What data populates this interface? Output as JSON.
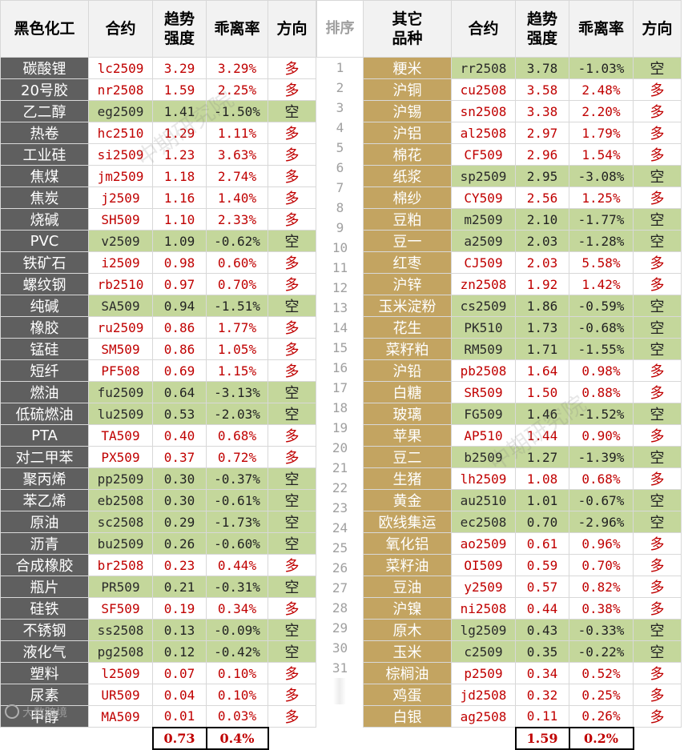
{
  "headers": {
    "left_group": "黑色化工",
    "contract": "合约",
    "strength": "趋势\n强度",
    "deviation": "乖离率",
    "direction": "方向",
    "rank": "排序",
    "right_group": "其它\n品种"
  },
  "rows": [
    {
      "rank": "1",
      "left": {
        "name": "碳酸锂",
        "code": "lc2509",
        "strength": "3.29",
        "dev": "3.29%",
        "dir": "多"
      },
      "right": {
        "name": "粳米",
        "code": "rr2508",
        "strength": "3.78",
        "dev": "-1.03%",
        "dir": "空"
      }
    },
    {
      "rank": "2",
      "left": {
        "name": "20号胶",
        "code": "nr2508",
        "strength": "1.59",
        "dev": "2.25%",
        "dir": "多"
      },
      "right": {
        "name": "沪铜",
        "code": "cu2508",
        "strength": "3.58",
        "dev": "2.48%",
        "dir": "多"
      }
    },
    {
      "rank": "3",
      "left": {
        "name": "乙二醇",
        "code": "eg2509",
        "strength": "1.41",
        "dev": "-1.50%",
        "dir": "空"
      },
      "right": {
        "name": "沪锡",
        "code": "sn2508",
        "strength": "3.38",
        "dev": "2.20%",
        "dir": "多"
      }
    },
    {
      "rank": "4",
      "left": {
        "name": "热卷",
        "code": "hc2510",
        "strength": "1.29",
        "dev": "1.11%",
        "dir": "多"
      },
      "right": {
        "name": "沪铝",
        "code": "al2508",
        "strength": "2.97",
        "dev": "1.79%",
        "dir": "多"
      }
    },
    {
      "rank": "5",
      "left": {
        "name": "工业硅",
        "code": "si2509",
        "strength": "1.23",
        "dev": "3.63%",
        "dir": "多"
      },
      "right": {
        "name": "棉花",
        "code": "CF509",
        "strength": "2.96",
        "dev": "1.54%",
        "dir": "多"
      }
    },
    {
      "rank": "6",
      "left": {
        "name": "焦煤",
        "code": "jm2509",
        "strength": "1.18",
        "dev": "2.74%",
        "dir": "多"
      },
      "right": {
        "name": "纸浆",
        "code": "sp2509",
        "strength": "2.95",
        "dev": "-3.08%",
        "dir": "空"
      }
    },
    {
      "rank": "7",
      "left": {
        "name": "焦炭",
        "code": "j2509",
        "strength": "1.16",
        "dev": "1.40%",
        "dir": "多"
      },
      "right": {
        "name": "棉纱",
        "code": "CY509",
        "strength": "2.56",
        "dev": "1.25%",
        "dir": "多"
      }
    },
    {
      "rank": "8",
      "left": {
        "name": "烧碱",
        "code": "SH509",
        "strength": "1.10",
        "dev": "2.33%",
        "dir": "多"
      },
      "right": {
        "name": "豆粕",
        "code": "m2509",
        "strength": "2.10",
        "dev": "-1.77%",
        "dir": "空"
      }
    },
    {
      "rank": "9",
      "left": {
        "name": "PVC",
        "code": "v2509",
        "strength": "1.09",
        "dev": "-0.62%",
        "dir": "空"
      },
      "right": {
        "name": "豆一",
        "code": "a2509",
        "strength": "2.03",
        "dev": "-1.28%",
        "dir": "空"
      }
    },
    {
      "rank": "10",
      "left": {
        "name": "铁矿石",
        "code": "i2509",
        "strength": "0.98",
        "dev": "0.60%",
        "dir": "多"
      },
      "right": {
        "name": "红枣",
        "code": "CJ509",
        "strength": "2.03",
        "dev": "5.58%",
        "dir": "多"
      }
    },
    {
      "rank": "11",
      "left": {
        "name": "螺纹钢",
        "code": "rb2510",
        "strength": "0.97",
        "dev": "0.70%",
        "dir": "多"
      },
      "right": {
        "name": "沪锌",
        "code": "zn2508",
        "strength": "1.92",
        "dev": "1.42%",
        "dir": "多"
      }
    },
    {
      "rank": "12",
      "left": {
        "name": "纯碱",
        "code": "SA509",
        "strength": "0.94",
        "dev": "-1.51%",
        "dir": "空"
      },
      "right": {
        "name": "玉米淀粉",
        "code": "cs2509",
        "strength": "1.86",
        "dev": "-0.59%",
        "dir": "空"
      }
    },
    {
      "rank": "13",
      "left": {
        "name": "橡胶",
        "code": "ru2509",
        "strength": "0.86",
        "dev": "1.77%",
        "dir": "多"
      },
      "right": {
        "name": "花生",
        "code": "PK510",
        "strength": "1.73",
        "dev": "-0.68%",
        "dir": "空"
      }
    },
    {
      "rank": "14",
      "left": {
        "name": "锰硅",
        "code": "SM509",
        "strength": "0.86",
        "dev": "1.05%",
        "dir": "多"
      },
      "right": {
        "name": "菜籽粕",
        "code": "RM509",
        "strength": "1.71",
        "dev": "-1.55%",
        "dir": "空"
      }
    },
    {
      "rank": "15",
      "left": {
        "name": "短纤",
        "code": "PF508",
        "strength": "0.69",
        "dev": "1.15%",
        "dir": "多"
      },
      "right": {
        "name": "沪铅",
        "code": "pb2508",
        "strength": "1.64",
        "dev": "0.98%",
        "dir": "多"
      }
    },
    {
      "rank": "16",
      "left": {
        "name": "燃油",
        "code": "fu2509",
        "strength": "0.64",
        "dev": "-3.13%",
        "dir": "空"
      },
      "right": {
        "name": "白糖",
        "code": "SR509",
        "strength": "1.50",
        "dev": "0.88%",
        "dir": "多"
      }
    },
    {
      "rank": "17",
      "left": {
        "name": "低硫燃油",
        "code": "lu2509",
        "strength": "0.53",
        "dev": "-2.03%",
        "dir": "空"
      },
      "right": {
        "name": "玻璃",
        "code": "FG509",
        "strength": "1.46",
        "dev": "-1.52%",
        "dir": "空"
      }
    },
    {
      "rank": "18",
      "left": {
        "name": "PTA",
        "code": "TA509",
        "strength": "0.40",
        "dev": "0.68%",
        "dir": "多"
      },
      "right": {
        "name": "苹果",
        "code": "AP510",
        "strength": "1.44",
        "dev": "0.90%",
        "dir": "多"
      }
    },
    {
      "rank": "19",
      "left": {
        "name": "对二甲苯",
        "code": "PX509",
        "strength": "0.37",
        "dev": "0.72%",
        "dir": "多"
      },
      "right": {
        "name": "豆二",
        "code": "b2509",
        "strength": "1.27",
        "dev": "-1.39%",
        "dir": "空"
      }
    },
    {
      "rank": "20",
      "left": {
        "name": "聚丙烯",
        "code": "pp2509",
        "strength": "0.30",
        "dev": "-0.37%",
        "dir": "空"
      },
      "right": {
        "name": "生猪",
        "code": "lh2509",
        "strength": "1.08",
        "dev": "0.68%",
        "dir": "多"
      }
    },
    {
      "rank": "21",
      "left": {
        "name": "苯乙烯",
        "code": "eb2508",
        "strength": "0.30",
        "dev": "-0.61%",
        "dir": "空"
      },
      "right": {
        "name": "黄金",
        "code": "au2510",
        "strength": "1.01",
        "dev": "-0.67%",
        "dir": "空"
      }
    },
    {
      "rank": "22",
      "left": {
        "name": "原油",
        "code": "sc2508",
        "strength": "0.29",
        "dev": "-1.73%",
        "dir": "空"
      },
      "right": {
        "name": "欧线集运",
        "code": "ec2508",
        "strength": "0.70",
        "dev": "-2.96%",
        "dir": "空"
      }
    },
    {
      "rank": "23",
      "left": {
        "name": "沥青",
        "code": "bu2509",
        "strength": "0.26",
        "dev": "-0.60%",
        "dir": "空"
      },
      "right": {
        "name": "氧化铝",
        "code": "ao2509",
        "strength": "0.61",
        "dev": "0.96%",
        "dir": "多"
      }
    },
    {
      "rank": "24",
      "left": {
        "name": "合成橡胶",
        "code": "br2508",
        "strength": "0.23",
        "dev": "0.44%",
        "dir": "多"
      },
      "right": {
        "name": "菜籽油",
        "code": "OI509",
        "strength": "0.59",
        "dev": "0.70%",
        "dir": "多"
      }
    },
    {
      "rank": "25",
      "left": {
        "name": "瓶片",
        "code": "PR509",
        "strength": "0.21",
        "dev": "-0.31%",
        "dir": "空"
      },
      "right": {
        "name": "豆油",
        "code": "y2509",
        "strength": "0.57",
        "dev": "0.82%",
        "dir": "多"
      }
    },
    {
      "rank": "26",
      "left": {
        "name": "硅铁",
        "code": "SF509",
        "strength": "0.19",
        "dev": "0.34%",
        "dir": "多"
      },
      "right": {
        "name": "沪镍",
        "code": "ni2508",
        "strength": "0.44",
        "dev": "0.38%",
        "dir": "多"
      }
    },
    {
      "rank": "27",
      "left": {
        "name": "不锈钢",
        "code": "ss2508",
        "strength": "0.13",
        "dev": "-0.09%",
        "dir": "空"
      },
      "right": {
        "name": "原木",
        "code": "lg2509",
        "strength": "0.43",
        "dev": "-0.33%",
        "dir": "空"
      }
    },
    {
      "rank": "28",
      "left": {
        "name": "液化气",
        "code": "pg2508",
        "strength": "0.12",
        "dev": "-0.42%",
        "dir": "空"
      },
      "right": {
        "name": "玉米",
        "code": "c2509",
        "strength": "0.35",
        "dev": "-0.22%",
        "dir": "空"
      }
    },
    {
      "rank": "29",
      "left": {
        "name": "塑料",
        "code": "l2509",
        "strength": "0.07",
        "dev": "0.10%",
        "dir": "多"
      },
      "right": {
        "name": "棕榈油",
        "code": "p2509",
        "strength": "0.34",
        "dev": "0.52%",
        "dir": "多"
      }
    },
    {
      "rank": "30",
      "left": {
        "name": "尿素",
        "code": "UR509",
        "strength": "0.04",
        "dev": "0.10%",
        "dir": "多"
      },
      "right": {
        "name": "鸡蛋",
        "code": "jd2508",
        "strength": "0.32",
        "dev": "0.25%",
        "dir": "多"
      }
    },
    {
      "rank": "31",
      "left": {
        "name": "甲醇",
        "code": "MA509",
        "strength": "0.01",
        "dev": "0.03%",
        "dir": "多"
      },
      "right": {
        "name": "白银",
        "code": "ag2508",
        "strength": "0.11",
        "dev": "0.26%",
        "dir": "多"
      }
    }
  ],
  "footer": {
    "left_avg_strength": "0.73",
    "left_avg_dev": "0.4%",
    "right_avg_strength": "1.59",
    "right_avg_dev": "0.2%",
    "logo_text": "大数跨境"
  },
  "watermark": "中期研究院",
  "colors": {
    "short_bg": "#c4d79b",
    "long_text": "#c00000",
    "left_name_bg": "#5f5f5f",
    "right_name_bg": "#c3a461"
  }
}
